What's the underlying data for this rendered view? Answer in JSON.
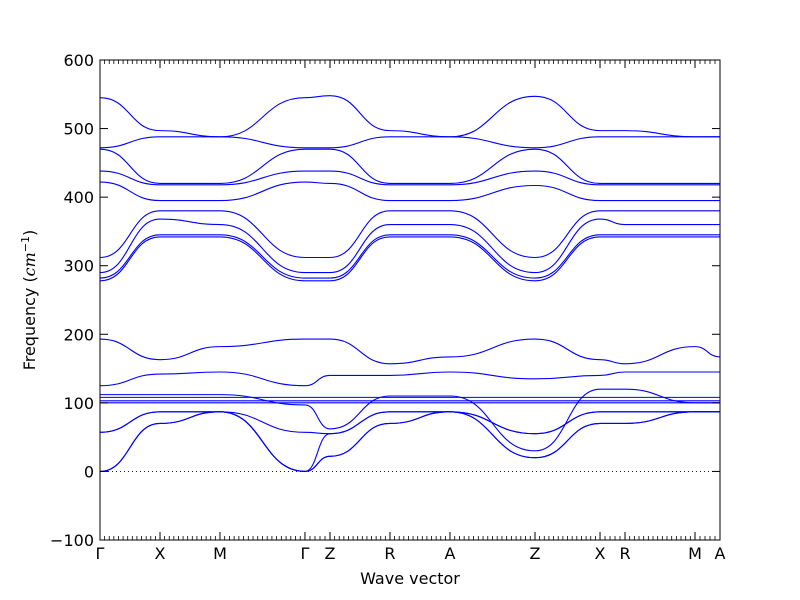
{
  "chart_data": {
    "type": "line",
    "title": "",
    "xlabel": "Wave vector",
    "ylabel_prefix": "Frequency (",
    "ylabel_unit_base": "cm",
    "ylabel_unit_exp": "−1",
    "ylabel_suffix": ")",
    "ylim": [
      -100,
      600
    ],
    "yticks": [
      -100,
      0,
      100,
      200,
      300,
      400,
      500,
      600
    ],
    "zero_line": true,
    "line_color": "#0000ff",
    "q_points": [
      {
        "label": "Γ",
        "x": 0
      },
      {
        "label": "X",
        "x": 0.0968
      },
      {
        "label": "M",
        "x": 0.1935
      },
      {
        "label": "Γ",
        "x": 0.3306
      },
      {
        "label": "Z",
        "x": 0.371
      },
      {
        "label": "R",
        "x": 0.4677
      },
      {
        "label": "A",
        "x": 0.5645
      },
      {
        "label": "Z",
        "x": 0.7016
      },
      {
        "label": "X",
        "x": 0.8065
      },
      {
        "label": "R",
        "x": 0.8468
      },
      {
        "label": "M",
        "x": 0.9597
      },
      {
        "label": "A",
        "x": 1.0
      }
    ],
    "bands": [
      [
        0,
        70,
        87,
        0,
        22,
        70,
        87,
        20,
        70,
        70,
        87,
        87
      ],
      [
        0,
        70,
        87,
        0,
        22,
        70,
        87,
        20,
        70,
        70,
        87,
        87
      ],
      [
        57,
        87,
        87,
        0,
        55,
        87,
        87,
        55,
        87,
        87,
        87,
        87
      ],
      [
        57,
        87,
        87,
        57,
        55,
        87,
        87,
        55,
        87,
        87,
        87,
        87
      ],
      [
        100,
        100,
        100,
        100,
        100,
        100,
        100,
        100,
        100,
        100,
        100,
        100
      ],
      [
        103,
        103,
        103,
        103,
        103,
        103,
        103,
        103,
        103,
        103,
        103,
        103
      ],
      [
        108,
        108,
        108,
        108,
        108,
        108,
        108,
        108,
        108,
        108,
        108,
        108
      ],
      [
        112,
        112,
        112,
        97,
        62,
        110,
        110,
        30,
        120,
        120,
        100,
        100
      ],
      [
        125,
        142,
        145,
        125,
        140,
        140,
        145,
        135,
        140,
        145,
        145,
        145
      ],
      [
        193,
        163,
        182,
        193,
        193,
        157,
        167,
        193,
        163,
        157,
        182,
        167
      ],
      [
        278,
        342,
        342,
        278,
        278,
        342,
        342,
        278,
        342,
        342,
        342,
        342
      ],
      [
        282,
        345,
        345,
        282,
        282,
        345,
        345,
        282,
        345,
        345,
        345,
        345
      ],
      [
        290,
        368,
        360,
        290,
        290,
        360,
        360,
        290,
        368,
        360,
        360,
        360
      ],
      [
        312,
        380,
        380,
        312,
        312,
        380,
        380,
        312,
        380,
        380,
        380,
        380
      ],
      [
        422,
        395,
        395,
        422,
        420,
        395,
        395,
        417,
        395,
        395,
        395,
        395
      ],
      [
        438,
        418,
        418,
        438,
        438,
        418,
        418,
        438,
        418,
        418,
        418,
        418
      ],
      [
        470,
        420,
        420,
        470,
        470,
        420,
        420,
        470,
        420,
        420,
        420,
        420
      ],
      [
        472,
        488,
        488,
        472,
        472,
        488,
        488,
        472,
        488,
        488,
        488,
        488
      ],
      [
        545,
        497,
        488,
        545,
        548,
        497,
        488,
        547,
        497,
        497,
        488,
        488
      ]
    ]
  }
}
